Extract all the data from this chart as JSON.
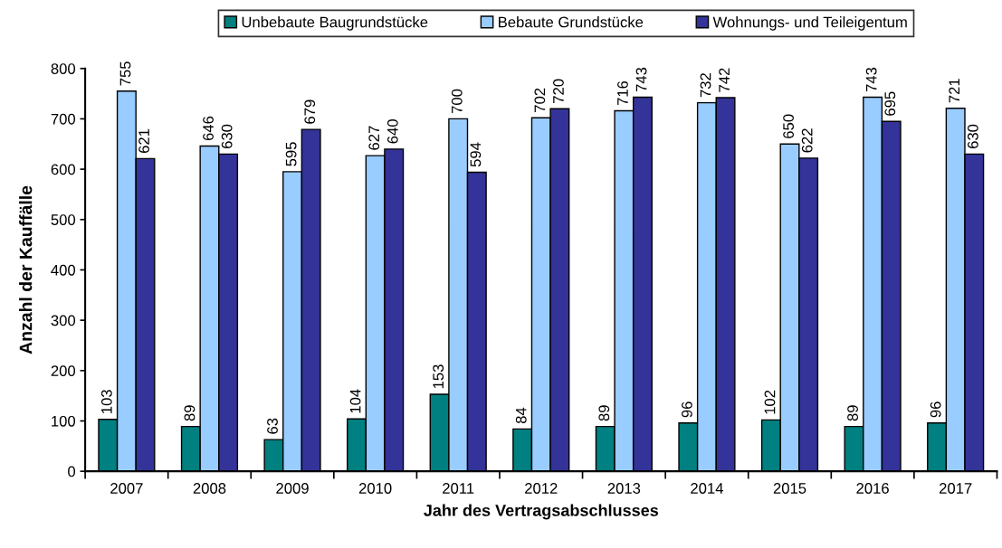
{
  "chart_data": {
    "type": "bar",
    "xlabel": "Jahr des Vertragsabschlusses",
    "ylabel": "Anzahl der Kauffälle",
    "categories": [
      "2007",
      "2008",
      "2009",
      "2010",
      "2011",
      "2012",
      "2013",
      "2014",
      "2015",
      "2016",
      "2017"
    ],
    "series": [
      {
        "name": "Unbebaute Baugrundstücke",
        "color": "#008080",
        "values": [
          103,
          89,
          63,
          104,
          153,
          84,
          89,
          96,
          102,
          89,
          96
        ]
      },
      {
        "name": "Bebaute Grundstücke",
        "color": "#99ccff",
        "values": [
          755,
          646,
          595,
          627,
          700,
          702,
          716,
          732,
          650,
          743,
          721
        ]
      },
      {
        "name": "Wohnungs- und Teileigentum",
        "color": "#333399",
        "values": [
          621,
          630,
          679,
          640,
          594,
          720,
          743,
          742,
          622,
          695,
          630
        ]
      }
    ],
    "ylim": [
      0,
      800
    ],
    "yticks": [
      0,
      100,
      200,
      300,
      400,
      500,
      600,
      700,
      800
    ],
    "grid": false,
    "legend": "top",
    "data_labels": true
  }
}
